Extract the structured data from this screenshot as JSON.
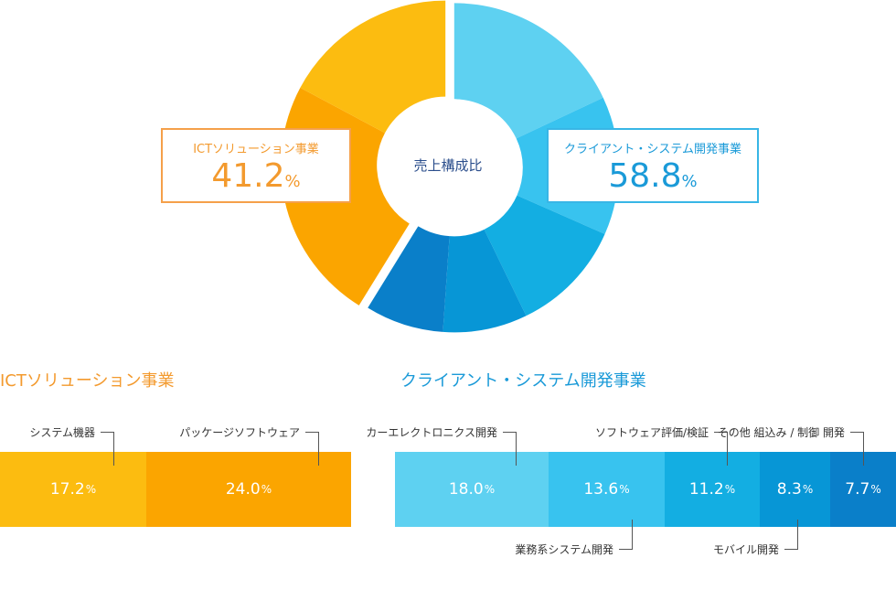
{
  "donut": {
    "center_label": "売上構成比",
    "callouts": {
      "ict": {
        "name": "ICTソリューション事業",
        "value": "41.2",
        "unit": "%"
      },
      "client": {
        "name": "クライアント・システム開発事業",
        "value": "58.8",
        "unit": "%"
      }
    }
  },
  "sections": {
    "ict_title": "ICTソリューション事業",
    "client_title": "クライアント・システム開発事業"
  },
  "chart_data": [
    {
      "type": "pie",
      "title": "売上構成比",
      "categories": [
        "ICTソリューション事業",
        "クライアント・システム開発事業"
      ],
      "values": [
        41.2,
        58.8
      ],
      "unit": "%",
      "colors": [
        "#f5a623",
        "#38c3ef"
      ]
    },
    {
      "type": "bar",
      "title": "ICTソリューション事業",
      "orientation": "horizontal-stacked",
      "categories": [
        "システム機器",
        "パッケージソフトウェア"
      ],
      "values": [
        17.2,
        24.0
      ],
      "labels": [
        "17.2",
        "24.0"
      ],
      "unit": "%",
      "colors": [
        "#fcbc10",
        "#fba500"
      ]
    },
    {
      "type": "bar",
      "title": "クライアント・システム開発事業",
      "orientation": "horizontal-stacked",
      "categories": [
        "カーエレクトロニクス開発",
        "業務系システム開発",
        "ソフトウェア評価/検証",
        "モバイル開発",
        "その他 組込み / 制御 開発"
      ],
      "values": [
        18.0,
        13.6,
        11.2,
        8.3,
        7.7
      ],
      "labels": [
        "18.0",
        "13.6",
        "11.2",
        "8.3",
        "7.7"
      ],
      "unit": "%",
      "colors": [
        "#5ed1f1",
        "#38c3ef",
        "#13aee2",
        "#0796d6",
        "#0a7fc9"
      ]
    }
  ],
  "donut_segments": {
    "client": [
      {
        "value": 18.0,
        "color": "#5ed1f1"
      },
      {
        "value": 13.6,
        "color": "#38c3ef"
      },
      {
        "value": 11.2,
        "color": "#13aee2"
      },
      {
        "value": 8.3,
        "color": "#0796d6"
      },
      {
        "value": 7.7,
        "color": "#0a7fc9"
      }
    ],
    "ict": [
      {
        "value": 24.0,
        "color": "#fba500"
      },
      {
        "value": 17.2,
        "color": "#fcbc10"
      }
    ]
  }
}
